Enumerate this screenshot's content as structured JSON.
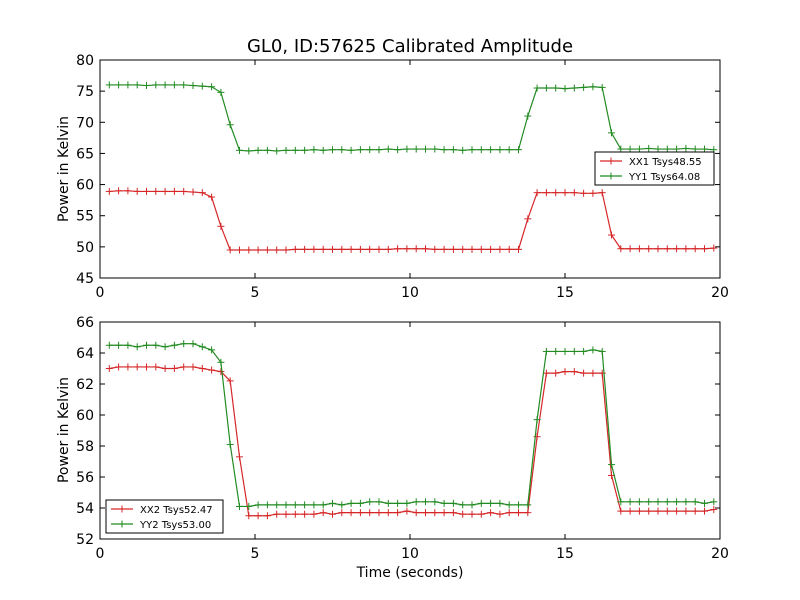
{
  "chart_data": [
    {
      "type": "line",
      "title": "GL0, ID:57625 Calibrated Amplitude",
      "xlabel": "",
      "ylabel": "Power in Kelvin",
      "xlim": [
        0,
        20
      ],
      "ylim": [
        45,
        80
      ],
      "xticks": [
        0,
        5,
        10,
        15,
        20
      ],
      "yticks": [
        45,
        50,
        55,
        60,
        65,
        70,
        75,
        80
      ],
      "grid": false,
      "legend_position": "center-right",
      "x": [
        0.3,
        0.6,
        0.9,
        1.2,
        1.5,
        1.8,
        2.1,
        2.4,
        2.7,
        3.0,
        3.3,
        3.6,
        3.9,
        4.2,
        4.5,
        4.8,
        5.1,
        5.4,
        5.7,
        6.0,
        6.3,
        6.6,
        6.9,
        7.2,
        7.5,
        7.8,
        8.1,
        8.4,
        8.7,
        9.0,
        9.3,
        9.6,
        9.9,
        10.2,
        10.5,
        10.8,
        11.1,
        11.4,
        11.7,
        12.0,
        12.3,
        12.6,
        12.9,
        13.2,
        13.5,
        13.8,
        14.1,
        14.4,
        14.7,
        15.0,
        15.3,
        15.6,
        15.9,
        16.2,
        16.5,
        16.8,
        17.1,
        17.4,
        17.7,
        18.0,
        18.3,
        18.6,
        18.9,
        19.2,
        19.5,
        19.8
      ],
      "series": [
        {
          "name": "XX1 Tsys48.55",
          "color": "#d62728",
          "values": [
            58.9,
            59.0,
            59.0,
            58.9,
            58.9,
            58.9,
            58.9,
            58.9,
            58.9,
            58.8,
            58.7,
            58.0,
            53.3,
            49.5,
            49.5,
            49.5,
            49.5,
            49.5,
            49.5,
            49.5,
            49.6,
            49.6,
            49.6,
            49.6,
            49.6,
            49.6,
            49.6,
            49.6,
            49.6,
            49.6,
            49.6,
            49.7,
            49.7,
            49.7,
            49.7,
            49.6,
            49.6,
            49.6,
            49.6,
            49.6,
            49.6,
            49.6,
            49.6,
            49.6,
            49.6,
            54.5,
            58.7,
            58.7,
            58.7,
            58.7,
            58.7,
            58.6,
            58.6,
            58.7,
            51.9,
            49.7,
            49.7,
            49.7,
            49.7,
            49.7,
            49.7,
            49.7,
            49.7,
            49.7,
            49.7,
            49.8
          ]
        },
        {
          "name": "YY1 Tsys64.08",
          "color": "#228b22",
          "values": [
            76.0,
            76.0,
            76.0,
            76.0,
            75.9,
            76.0,
            76.0,
            76.0,
            76.0,
            75.9,
            75.8,
            75.7,
            74.8,
            69.6,
            65.5,
            65.4,
            65.5,
            65.5,
            65.4,
            65.5,
            65.5,
            65.5,
            65.6,
            65.5,
            65.6,
            65.6,
            65.5,
            65.6,
            65.6,
            65.6,
            65.7,
            65.6,
            65.7,
            65.7,
            65.7,
            65.7,
            65.6,
            65.6,
            65.5,
            65.6,
            65.6,
            65.6,
            65.6,
            65.6,
            65.6,
            71.0,
            75.5,
            75.5,
            75.5,
            75.4,
            75.5,
            75.6,
            75.7,
            75.6,
            68.3,
            65.7,
            65.7,
            65.7,
            65.8,
            65.7,
            65.7,
            65.7,
            65.8,
            65.7,
            65.7,
            65.6
          ]
        }
      ]
    },
    {
      "type": "line",
      "title": "",
      "xlabel": "Time (seconds)",
      "ylabel": "Power in Kelvin",
      "xlim": [
        0,
        20
      ],
      "ylim": [
        52,
        66
      ],
      "xticks": [
        0,
        5,
        10,
        15,
        20
      ],
      "yticks": [
        52,
        54,
        56,
        58,
        60,
        62,
        64,
        66
      ],
      "grid": false,
      "legend_position": "bottom-left",
      "x": [
        0.3,
        0.6,
        0.9,
        1.2,
        1.5,
        1.8,
        2.1,
        2.4,
        2.7,
        3.0,
        3.3,
        3.6,
        3.9,
        4.2,
        4.5,
        4.8,
        5.1,
        5.4,
        5.7,
        6.0,
        6.3,
        6.6,
        6.9,
        7.2,
        7.5,
        7.8,
        8.1,
        8.4,
        8.7,
        9.0,
        9.3,
        9.6,
        9.9,
        10.2,
        10.5,
        10.8,
        11.1,
        11.4,
        11.7,
        12.0,
        12.3,
        12.6,
        12.9,
        13.2,
        13.5,
        13.8,
        14.1,
        14.4,
        14.7,
        15.0,
        15.3,
        15.6,
        15.9,
        16.2,
        16.5,
        16.8,
        17.1,
        17.4,
        17.7,
        18.0,
        18.3,
        18.6,
        18.9,
        19.2,
        19.5,
        19.8
      ],
      "series": [
        {
          "name": "XX2 Tsys52.47",
          "color": "#d62728",
          "values": [
            63.0,
            63.1,
            63.1,
            63.1,
            63.1,
            63.1,
            63.0,
            63.0,
            63.1,
            63.1,
            63.0,
            62.9,
            62.8,
            62.2,
            57.3,
            53.5,
            53.5,
            53.5,
            53.6,
            53.6,
            53.6,
            53.6,
            53.6,
            53.7,
            53.6,
            53.7,
            53.7,
            53.7,
            53.7,
            53.7,
            53.7,
            53.7,
            53.8,
            53.7,
            53.7,
            53.7,
            53.7,
            53.7,
            53.6,
            53.6,
            53.6,
            53.7,
            53.6,
            53.7,
            53.7,
            53.7,
            58.6,
            62.7,
            62.7,
            62.8,
            62.8,
            62.7,
            62.7,
            62.7,
            56.1,
            53.8,
            53.8,
            53.8,
            53.8,
            53.8,
            53.8,
            53.8,
            53.8,
            53.8,
            53.8,
            53.9
          ]
        },
        {
          "name": "YY2 Tsys53.00",
          "color": "#228b22",
          "values": [
            64.5,
            64.5,
            64.5,
            64.4,
            64.5,
            64.5,
            64.4,
            64.5,
            64.6,
            64.6,
            64.4,
            64.2,
            63.4,
            58.1,
            54.1,
            54.1,
            54.2,
            54.2,
            54.2,
            54.2,
            54.2,
            54.2,
            54.2,
            54.2,
            54.3,
            54.2,
            54.3,
            54.3,
            54.4,
            54.4,
            54.3,
            54.3,
            54.3,
            54.4,
            54.4,
            54.4,
            54.3,
            54.3,
            54.2,
            54.2,
            54.3,
            54.3,
            54.3,
            54.2,
            54.2,
            54.2,
            59.7,
            64.1,
            64.1,
            64.1,
            64.1,
            64.1,
            64.2,
            64.1,
            56.8,
            54.4,
            54.4,
            54.4,
            54.4,
            54.4,
            54.4,
            54.4,
            54.4,
            54.4,
            54.3,
            54.4
          ]
        }
      ]
    }
  ]
}
